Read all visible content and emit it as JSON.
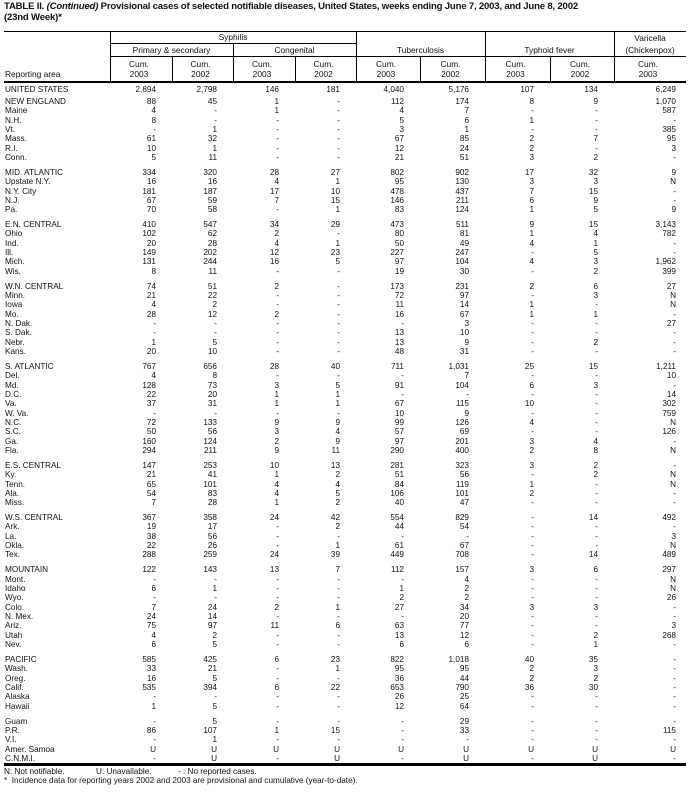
{
  "title": {
    "prefix": "TABLE II. ",
    "continued": "(Continued)",
    "text": " Provisional cases of selected notifiable diseases, United States, weeks ending June 7, 2003, and June 8, 2002",
    "line2": "(23nd Week)*"
  },
  "header": {
    "syphilis": "Syphilis",
    "primary": "Primary & secondary",
    "congenital": "Congenital",
    "tuberculosis": "Tuberculosis",
    "typhoid": "Typhoid fever",
    "varicella": "Varicella",
    "varicella_sub": "(Chickenpox)",
    "reporting_area": "Reporting area",
    "cum": "Cum.",
    "years": [
      "2003",
      "2002",
      "2003",
      "2002",
      "2003",
      "2002",
      "2003",
      "2002",
      "2003"
    ]
  },
  "groups": [
    {
      "rows": [
        [
          "UNITED STATES",
          "2,894",
          "2,798",
          "146",
          "181",
          "4,040",
          "5,176",
          "107",
          "134",
          "6,249"
        ]
      ]
    },
    {
      "rows": [
        [
          "NEW ENGLAND",
          "88",
          "45",
          "1",
          "-",
          "112",
          "174",
          "8",
          "9",
          "1,070"
        ],
        [
          "Maine",
          "4",
          "-",
          "1",
          "-",
          "4",
          "7",
          "-",
          "-",
          "587"
        ],
        [
          "N.H.",
          "8",
          "-",
          "-",
          "-",
          "5",
          "6",
          "1",
          "-",
          "-"
        ],
        [
          "Vt.",
          "-",
          "1",
          "-",
          "-",
          "3",
          "1",
          "-",
          "-",
          "385"
        ],
        [
          "Mass.",
          "61",
          "32",
          "-",
          "-",
          "67",
          "85",
          "2",
          "7",
          "95"
        ],
        [
          "R.I.",
          "10",
          "1",
          "-",
          "-",
          "12",
          "24",
          "2",
          "-",
          "3"
        ],
        [
          "Conn.",
          "5",
          "11",
          "-",
          "-",
          "21",
          "51",
          "3",
          "2",
          "-"
        ]
      ]
    },
    {
      "rows": [
        [
          "MID. ATLANTIC",
          "334",
          "320",
          "28",
          "27",
          "802",
          "902",
          "17",
          "32",
          "9"
        ],
        [
          "Upstate N.Y.",
          "16",
          "16",
          "4",
          "1",
          "95",
          "130",
          "3",
          "3",
          "N"
        ],
        [
          "N.Y. City",
          "181",
          "187",
          "17",
          "10",
          "478",
          "437",
          "7",
          "15",
          "-"
        ],
        [
          "N.J.",
          "67",
          "59",
          "7",
          "15",
          "146",
          "211",
          "6",
          "9",
          "-"
        ],
        [
          "Pa.",
          "70",
          "58",
          "-",
          "1",
          "83",
          "124",
          "1",
          "5",
          "9"
        ]
      ]
    },
    {
      "rows": [
        [
          "E.N. CENTRAL",
          "410",
          "547",
          "34",
          "29",
          "473",
          "511",
          "9",
          "15",
          "3,143"
        ],
        [
          "Ohio",
          "102",
          "62",
          "2",
          "-",
          "80",
          "81",
          "1",
          "4",
          "782"
        ],
        [
          "Ind.",
          "20",
          "28",
          "4",
          "1",
          "50",
          "49",
          "4",
          "1",
          "-"
        ],
        [
          "Ill.",
          "149",
          "202",
          "12",
          "23",
          "227",
          "247",
          "-",
          "5",
          "-"
        ],
        [
          "Mich.",
          "131",
          "244",
          "16",
          "5",
          "97",
          "104",
          "4",
          "3",
          "1,962"
        ],
        [
          "Wis.",
          "8",
          "11",
          "-",
          "-",
          "19",
          "30",
          "-",
          "2",
          "399"
        ]
      ]
    },
    {
      "rows": [
        [
          "W.N. CENTRAL",
          "74",
          "51",
          "2",
          "-",
          "173",
          "231",
          "2",
          "6",
          "27"
        ],
        [
          "Minn.",
          "21",
          "22",
          "-",
          "-",
          "72",
          "97",
          "-",
          "3",
          "N"
        ],
        [
          "Iowa",
          "4",
          "2",
          "-",
          "-",
          "11",
          "14",
          "1",
          "-",
          "N"
        ],
        [
          "Mo.",
          "28",
          "12",
          "2",
          "-",
          "16",
          "67",
          "1",
          "1",
          "-"
        ],
        [
          "N. Dak.",
          "-",
          "-",
          "-",
          "-",
          "-",
          "3",
          "-",
          "-",
          "27"
        ],
        [
          "S. Dak.",
          "-",
          "-",
          "-",
          "-",
          "13",
          "10",
          "-",
          "-",
          "-"
        ],
        [
          "Nebr.",
          "1",
          "5",
          "-",
          "-",
          "13",
          "9",
          "-",
          "2",
          "-"
        ],
        [
          "Kans.",
          "20",
          "10",
          "-",
          "-",
          "48",
          "31",
          "-",
          "-",
          "-"
        ]
      ]
    },
    {
      "rows": [
        [
          "S. ATLANTIC",
          "767",
          "656",
          "28",
          "40",
          "711",
          "1,031",
          "25",
          "15",
          "1,211"
        ],
        [
          "Del.",
          "4",
          "8",
          "-",
          "-",
          "-",
          "7",
          "-",
          "-",
          "10"
        ],
        [
          "Md.",
          "128",
          "73",
          "3",
          "5",
          "91",
          "104",
          "6",
          "3",
          "-"
        ],
        [
          "D.C.",
          "22",
          "20",
          "1",
          "1",
          "-",
          "-",
          "-",
          "-",
          "14"
        ],
        [
          "Va.",
          "37",
          "31",
          "1",
          "1",
          "67",
          "115",
          "10",
          "-",
          "302"
        ],
        [
          "W. Va.",
          "-",
          "-",
          "-",
          "-",
          "10",
          "9",
          "-",
          "-",
          "759"
        ],
        [
          "N.C.",
          "72",
          "133",
          "9",
          "9",
          "99",
          "126",
          "4",
          "-",
          "N"
        ],
        [
          "S.C.",
          "50",
          "56",
          "3",
          "4",
          "57",
          "69",
          "-",
          "-",
          "126"
        ],
        [
          "Ga.",
          "160",
          "124",
          "2",
          "9",
          "97",
          "201",
          "3",
          "4",
          "-"
        ],
        [
          "Fla.",
          "294",
          "211",
          "9",
          "11",
          "290",
          "400",
          "2",
          "8",
          "N"
        ]
      ]
    },
    {
      "rows": [
        [
          "E.S. CENTRAL",
          "147",
          "253",
          "10",
          "13",
          "281",
          "323",
          "3",
          "2",
          "-"
        ],
        [
          "Ky.",
          "21",
          "41",
          "1",
          "2",
          "51",
          "56",
          "-",
          "2",
          "N"
        ],
        [
          "Tenn.",
          "65",
          "101",
          "4",
          "4",
          "84",
          "119",
          "1",
          "-",
          "N"
        ],
        [
          "Ala.",
          "54",
          "83",
          "4",
          "5",
          "106",
          "101",
          "2",
          "-",
          "-"
        ],
        [
          "Miss.",
          "7",
          "28",
          "1",
          "2",
          "40",
          "47",
          "-",
          "-",
          "-"
        ]
      ]
    },
    {
      "rows": [
        [
          "W.S. CENTRAL",
          "367",
          "358",
          "24",
          "42",
          "554",
          "829",
          "-",
          "14",
          "492"
        ],
        [
          "Ark.",
          "19",
          "17",
          "-",
          "2",
          "44",
          "54",
          "-",
          "-",
          "-"
        ],
        [
          "La.",
          "38",
          "56",
          "-",
          "-",
          "-",
          "-",
          "-",
          "-",
          "3"
        ],
        [
          "Okla.",
          "22",
          "26",
          "-",
          "1",
          "61",
          "67",
          "-",
          "-",
          "N"
        ],
        [
          "Tex.",
          "288",
          "259",
          "24",
          "39",
          "449",
          "708",
          "-",
          "14",
          "489"
        ]
      ]
    },
    {
      "rows": [
        [
          "MOUNTAIN",
          "122",
          "143",
          "13",
          "7",
          "112",
          "157",
          "3",
          "6",
          "297"
        ],
        [
          "Mont.",
          "-",
          "-",
          "-",
          "-",
          "-",
          "4",
          "-",
          "-",
          "N"
        ],
        [
          "Idaho",
          "6",
          "1",
          "-",
          "-",
          "1",
          "2",
          "-",
          "-",
          "N"
        ],
        [
          "Wyo.",
          "-",
          "-",
          "-",
          "-",
          "2",
          "2",
          "-",
          "-",
          "26"
        ],
        [
          "Colo.",
          "7",
          "24",
          "2",
          "1",
          "27",
          "34",
          "3",
          "3",
          "-"
        ],
        [
          "N. Mex.",
          "24",
          "14",
          "-",
          "-",
          "-",
          "20",
          "-",
          "-",
          "-"
        ],
        [
          "Ariz.",
          "75",
          "97",
          "11",
          "6",
          "63",
          "77",
          "-",
          "-",
          "3"
        ],
        [
          "Utah",
          "4",
          "2",
          "-",
          "-",
          "13",
          "12",
          "-",
          "2",
          "268"
        ],
        [
          "Nev.",
          "6",
          "5",
          "-",
          "-",
          "6",
          "6",
          "-",
          "1",
          "-"
        ]
      ]
    },
    {
      "rows": [
        [
          "PACIFIC",
          "585",
          "425",
          "6",
          "23",
          "822",
          "1,018",
          "40",
          "35",
          "-"
        ],
        [
          "Wash.",
          "33",
          "21",
          "-",
          "1",
          "95",
          "95",
          "2",
          "3",
          "-"
        ],
        [
          "Oreg.",
          "16",
          "5",
          "-",
          "-",
          "36",
          "44",
          "2",
          "2",
          "-"
        ],
        [
          "Calif.",
          "535",
          "394",
          "6",
          "22",
          "653",
          "790",
          "36",
          "30",
          "-"
        ],
        [
          "Alaska",
          "-",
          "-",
          "-",
          "-",
          "26",
          "25",
          "-",
          "-",
          "-"
        ],
        [
          "Hawaii",
          "1",
          "5",
          "-",
          "-",
          "12",
          "64",
          "-",
          "-",
          "-"
        ]
      ]
    },
    {
      "rows": [
        [
          "Guam",
          "-",
          "5",
          "-",
          "-",
          "-",
          "29",
          "-",
          "-",
          "-"
        ],
        [
          "P.R.",
          "86",
          "107",
          "1",
          "15",
          "-",
          "33",
          "-",
          "-",
          "115"
        ],
        [
          "V.I.",
          "-",
          "1",
          "-",
          "-",
          "-",
          "-",
          "-",
          "-",
          "-"
        ],
        [
          "Amer. Samoa",
          "U",
          "U",
          "U",
          "U",
          "U",
          "U",
          "U",
          "U",
          "U"
        ],
        [
          "C.N.M.I.",
          "-",
          "U",
          "-",
          "U",
          "-",
          "U",
          "-",
          "U",
          "-"
        ]
      ]
    }
  ],
  "footer": {
    "legend_n": "N: Not notifiable.",
    "legend_u": "U: Unavailable.",
    "legend_dash": "- : No reported cases.",
    "note": "*  Incidence data for reporting years 2002 and 2003 are provisional and cumulative (year-to-date)."
  }
}
